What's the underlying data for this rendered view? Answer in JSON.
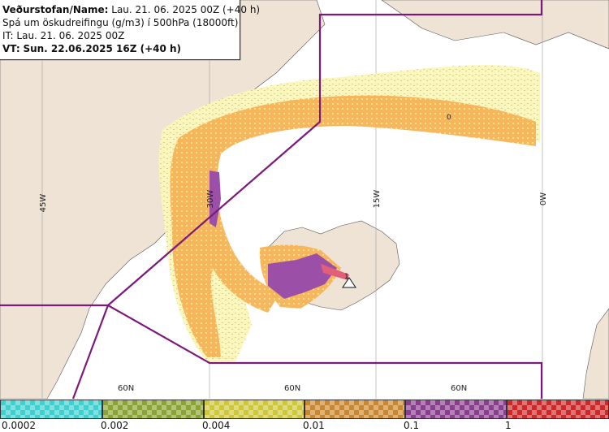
{
  "header": {
    "agency_label": "Veðurstofan/Name:",
    "agency_value": "Lau. 21. 06. 2025 00Z (+40 h)",
    "product": "Spá um öskudreifingu (g/m3) í 500hPa (18000ft)",
    "issue_time": "IT: Lau. 21. 06. 2025 00Z",
    "valid_label": "VT:",
    "valid_value": "Sun. 22.06.2025 16Z (+40 h)"
  },
  "map": {
    "longitude_labels": [
      "45W",
      "30W",
      "15W",
      "0W"
    ],
    "latitude_labels": [
      "60N",
      "60N",
      "60N"
    ],
    "contour_label": "0",
    "volcano_label": "1"
  },
  "legend": {
    "ticks": [
      "0.0002",
      "0.002",
      "0.004",
      "0.01",
      "0.1",
      "1"
    ],
    "colors": [
      "#3fd0d0",
      "#8aa332",
      "#cfc73a",
      "#c9882f",
      "#8a3f8e",
      "#cc2a2a"
    ]
  },
  "colors": {
    "land": "#efe3d6",
    "sea": "#ffffff",
    "boundary": "#7b1a7b",
    "ash_low": "#f8f29a",
    "ash_med": "#f6b04e",
    "ash_high": "#9b4fa6",
    "ash_peak": "#e0607a"
  }
}
